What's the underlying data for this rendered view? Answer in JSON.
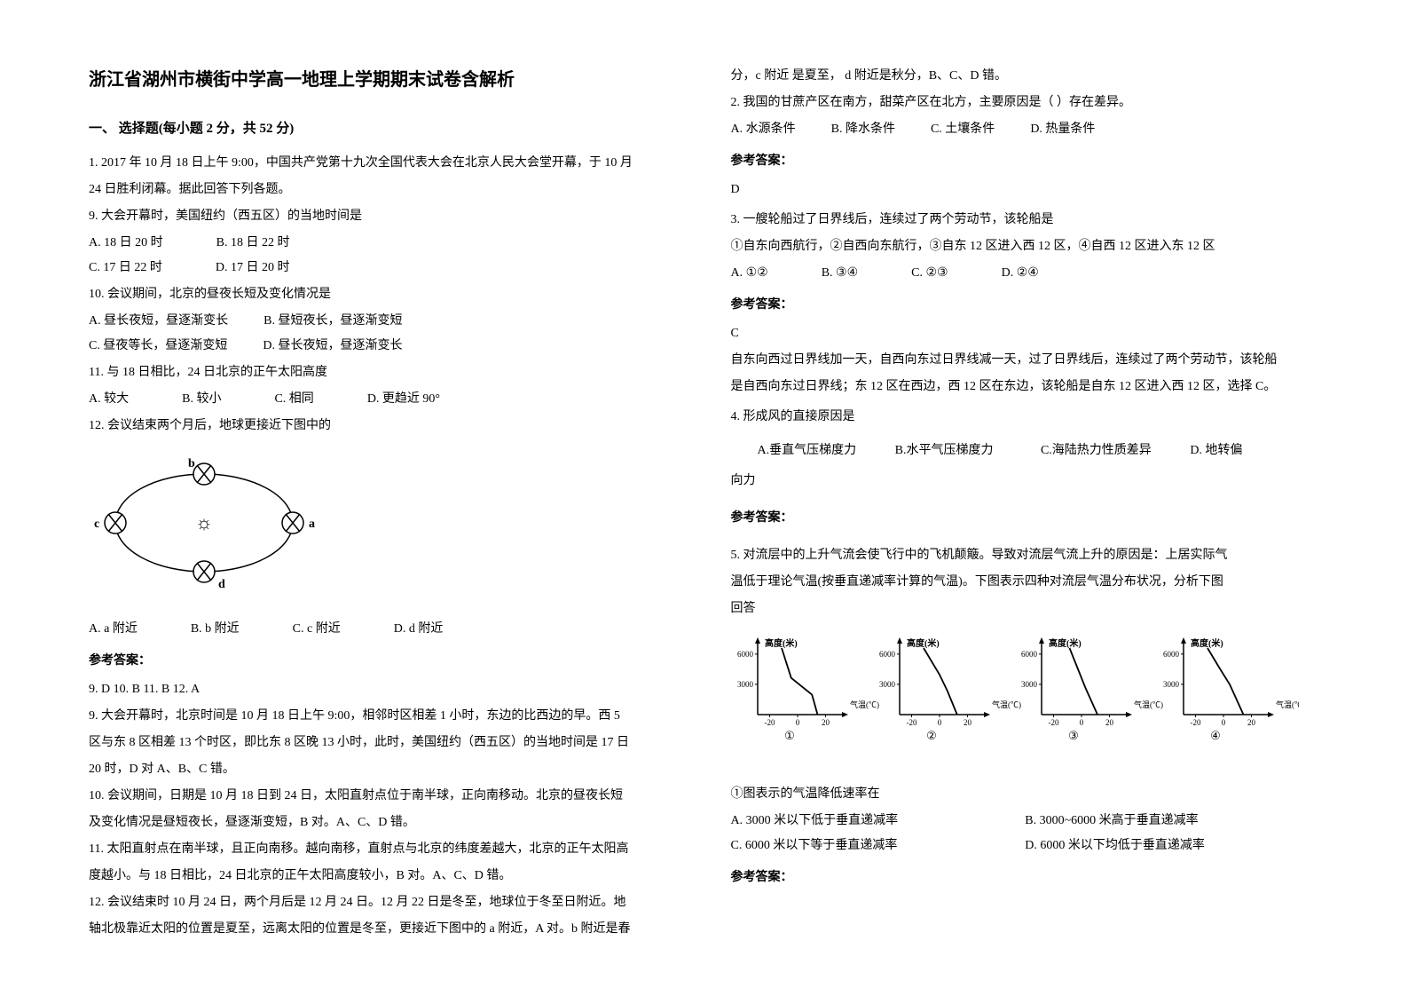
{
  "title": "浙江省湖州市横街中学高一地理上学期期末试卷含解析",
  "section1_title": "一、 选择题(每小题 2 分，共 52 分)",
  "q1": {
    "stem1": "1. 2017 年 10 月 18 日上午 9:00，中国共产党第十九次全国代表大会在北京人民大会堂开幕，于 10 月",
    "stem2": "24 日胜利闭幕。据此回答下列各题。",
    "sub9": "9. 大会开幕时，美国纽约（西五区）的当地时间是",
    "sub9_a": "A. 18 日 20 时",
    "sub9_b": "B. 18 日 22 时",
    "sub9_c": "C. 17 日 22 时",
    "sub9_d": "D. 17 日 20 时",
    "sub10": "10. 会议期间，北京的昼夜长短及变化情况是",
    "sub10_a": "A. 昼长夜短，昼逐渐变长",
    "sub10_b": "B. 昼短夜长，昼逐渐变短",
    "sub10_c": "C. 昼夜等长，昼逐渐变短",
    "sub10_d": "D. 昼长夜短，昼逐渐变长",
    "sub11": "11. 与 18 日相比，24 日北京的正午太阳高度",
    "sub11_a": "A. 较大",
    "sub11_b": "B. 较小",
    "sub11_c": "C. 相同",
    "sub11_d": "D. 更趋近 90°",
    "sub12": "12. 会议结束两个月后，地球更接近下图中的",
    "sub12_a": "A. a 附近",
    "sub12_b": "B. b 附近",
    "sub12_c": "C. c 附近",
    "sub12_d": "D. d 附近",
    "orbit": {
      "labels": {
        "a": "a",
        "b": "b",
        "c": "c",
        "d": "d"
      },
      "stroke": "#000000",
      "fill": "#ffffff",
      "sun_symbol": "☼"
    },
    "answer_label": "参考答案：",
    "answers_line": "9. D        10. B        11. B        12. A",
    "exp1": "9. 大会开幕时，北京时间是 10 月 18 日上午 9:00，相邻时区相差 1 小时，东边的比西边的早。西 5",
    "exp2": "区与东 8 区相差 13 个时区，即比东 8 区晚 13 小时，此时，美国纽约（西五区）的当地时间是 17 日",
    "exp3": "20 时，D 对 A、B、C 错。",
    "exp4": "10. 会议期间，日期是 10 月 18 日到 24 日，太阳直射点位于南半球，正向南移动。北京的昼夜长短",
    "exp5": "及变化情况是昼短夜长，昼逐渐变短，B 对。A、C、D 错。",
    "exp6": "11. 太阳直射点在南半球，且正向南移。越向南移，直射点与北京的纬度差越大，北京的正午太阳高",
    "exp7": "度越小。与 18 日相比，24 日北京的正午太阳高度较小，B 对。A、C、D 错。",
    "exp8": "12. 会议结束时 10 月 24 日，两个月后是 12 月 24 日。12 月 22 日是冬至，地球位于冬至日附近。地",
    "exp9": "轴北极靠近太阳的位置是夏至，远离太阳的位置是冬至，更接近下图中的 a 附近，A 对。b 附近是春"
  },
  "col2": {
    "cont1": "分，c 附近 是夏至， d 附近是秋分，B、C、D 错。",
    "q2_stem": "2. 我国的甘蔗产区在南方，甜菜产区在北方，主要原因是（  ）存在差异。",
    "q2_a": "A. 水源条件",
    "q2_b": "B. 降水条件",
    "q2_c": "C. 土壤条件",
    "q2_d": "D. 热量条件",
    "q2_answer_label": "参考答案：",
    "q2_answer": "D",
    "q3_stem": "3. 一艘轮船过了日界线后，连续过了两个劳动节，该轮船是",
    "q3_line2": "①自东向西航行，②自西向东航行，③自东 12 区进入西 12 区，④自西 12 区进入东 12 区",
    "q3_a": "A. ①②",
    "q3_b": "B. ③④",
    "q3_c": "C. ②③",
    "q3_d": "D. ②④",
    "q3_answer_label": "参考答案：",
    "q3_answer": "C",
    "q3_exp1": "自东向西过日界线加一天，自西向东过日界线减一天，过了日界线后，连续过了两个劳动节，该轮船",
    "q3_exp2": "是自西向东过日界线；东 12 区在西边，西 12 区在东边，该轮船是自东 12 区进入西 12 区，选择 C。",
    "q4_stem": "4. 形成风的直接原因是",
    "q4_a": "A.垂直气压梯度力",
    "q4_b": "B.水平气压梯度力",
    "q4_c": "C.海陆热力性质差异",
    "q4_d": "D. 地转偏",
    "q4_cont": "向力",
    "q4_answer_label": "参考答案：",
    "q5_stem1": "5. 对流层中的上升气流会使飞行中的飞机颠簸。导致对流层气流上升的原因是：上居实际气",
    "q5_stem2": "温低于理论气温(按垂直递减率计算的气温)。下图表示四种对流层气温分布状况，分析下图",
    "q5_stem3": "回答",
    "chart": {
      "panels": [
        {
          "label": "①",
          "x_ticks": [
            "-20",
            "0",
            "20"
          ],
          "y_ticks": [
            "3000",
            "6000"
          ],
          "x_label": "气温(℃)",
          "y_label": "高度(米)"
        },
        {
          "label": "②",
          "x_ticks": [
            "-20",
            "0",
            "20"
          ],
          "y_ticks": [
            "3000",
            "6000"
          ],
          "x_label": "气温(℃)",
          "y_label": "高度(米)"
        },
        {
          "label": "③",
          "x_ticks": [
            "-20",
            "0",
            "20"
          ],
          "y_ticks": [
            "3000",
            "6000"
          ],
          "x_label": "气温(℃)",
          "y_label": "高度(米)"
        },
        {
          "label": "④",
          "x_ticks": [
            "-20",
            "0",
            "20"
          ],
          "y_ticks": [
            "3000",
            "6000"
          ],
          "x_label": "气温(℃)",
          "y_label": "高度(米)"
        }
      ],
      "curves": {
        "1": [
          [
            0.75,
            0
          ],
          [
            0.68,
            0.3
          ],
          [
            0.42,
            0.55
          ],
          [
            0.3,
            1
          ]
        ],
        "2": [
          [
            0.72,
            0
          ],
          [
            0.6,
            0.35
          ],
          [
            0.5,
            0.6
          ],
          [
            0.3,
            1
          ]
        ],
        "3": [
          [
            0.7,
            0
          ],
          [
            0.55,
            0.4
          ],
          [
            0.45,
            0.7
          ],
          [
            0.35,
            1
          ]
        ],
        "4": [
          [
            0.75,
            0
          ],
          [
            0.58,
            0.45
          ],
          [
            0.45,
            0.7
          ],
          [
            0.3,
            1
          ]
        ]
      },
      "stroke": "#000000",
      "axis_fontsize": 9
    },
    "q5_sub": "①图表示的气温降低速率在",
    "q5_a": "A. 3000 米以下低于垂直递减率",
    "q5_b": "B. 3000~6000 米高于垂直递减率",
    "q5_c": "C. 6000 米以下等于垂直递减率",
    "q5_d": "D. 6000 米以下均低于垂直递减率",
    "q5_answer_label": "参考答案："
  }
}
